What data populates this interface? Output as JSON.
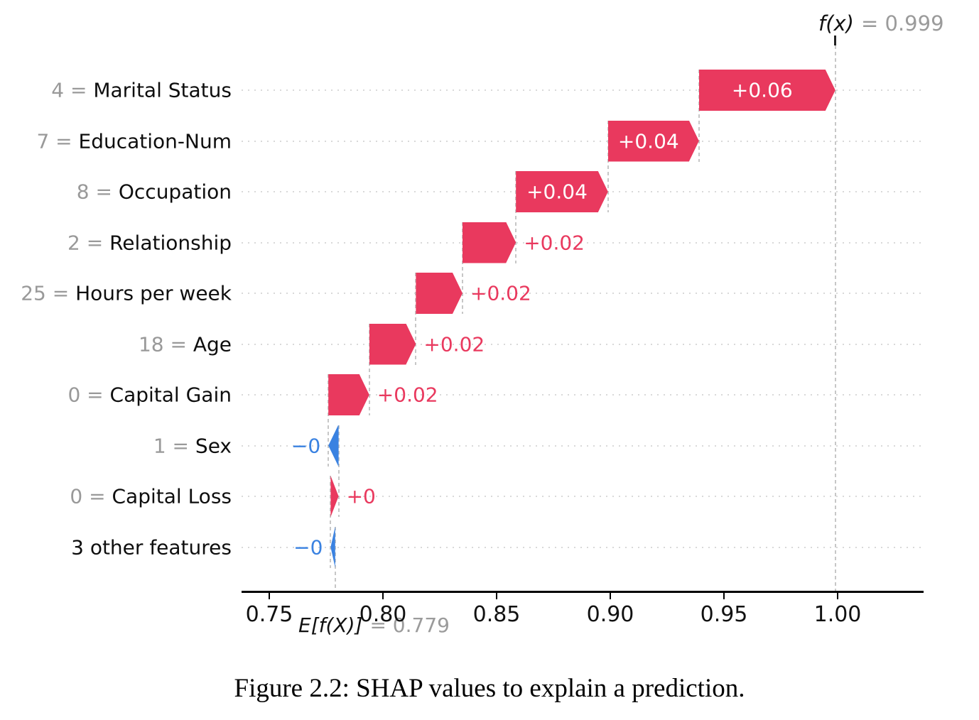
{
  "chart_data": {
    "type": "bar",
    "subtype": "shap-waterfall",
    "fx": {
      "label": "f(x)",
      "value": 0.999,
      "value_text": "= 0.999"
    },
    "base": {
      "label": "E[f(X)]",
      "value": 0.779,
      "value_text": "= 0.779"
    },
    "equals": "=",
    "x_ticks": [
      0.75,
      0.8,
      0.85,
      0.9,
      0.95,
      1.0
    ],
    "x_tick_labels": [
      "0.75",
      "0.80",
      "0.85",
      "0.90",
      "0.95",
      "1.00"
    ],
    "xlim": [
      0.738,
      1.038
    ],
    "grid": "dotted-horizontal",
    "colors": {
      "positive": "#e9395e",
      "negative": "#3a82e1",
      "muted_text": "#9b9b9b",
      "grid": "#d9d9d9",
      "connector": "#c7c7c7",
      "axis": "#000000"
    },
    "rows": [
      {
        "value": "4",
        "feature": "Marital Status",
        "label": "+0.06",
        "shap": 0.06,
        "start": 0.939,
        "end": 0.999,
        "direction": "positive",
        "label_position": "inside"
      },
      {
        "value": "7",
        "feature": "Education-Num",
        "label": "+0.04",
        "shap": 0.04,
        "start": 0.899,
        "end": 0.939,
        "direction": "positive",
        "label_position": "inside"
      },
      {
        "value": "8",
        "feature": "Occupation",
        "label": "+0.04",
        "shap": 0.0405,
        "start": 0.8585,
        "end": 0.899,
        "direction": "positive",
        "label_position": "inside"
      },
      {
        "value": "2",
        "feature": "Relationship",
        "label": "+0.02",
        "shap": 0.0235,
        "start": 0.835,
        "end": 0.8585,
        "direction": "positive",
        "label_position": "right"
      },
      {
        "value": "25",
        "feature": "Hours per week",
        "label": "+0.02",
        "shap": 0.0205,
        "start": 0.8145,
        "end": 0.835,
        "direction": "positive",
        "label_position": "right"
      },
      {
        "value": "18",
        "feature": "Age",
        "label": "+0.02",
        "shap": 0.0205,
        "start": 0.794,
        "end": 0.8145,
        "direction": "positive",
        "label_position": "right"
      },
      {
        "value": "0",
        "feature": "Capital Gain",
        "label": "+0.02",
        "shap": 0.018,
        "start": 0.776,
        "end": 0.794,
        "direction": "positive",
        "label_position": "right"
      },
      {
        "value": "1",
        "feature": "Sex",
        "label": "−0",
        "shap": -0.0045,
        "start": 0.7805,
        "end": 0.776,
        "direction": "negative",
        "label_position": "left"
      },
      {
        "value": "0",
        "feature": "Capital Loss",
        "label": "+0",
        "shap": 0.0035,
        "start": 0.777,
        "end": 0.7805,
        "direction": "positive",
        "label_position": "right"
      },
      {
        "value": null,
        "feature": "3 other features",
        "label": "−0",
        "shap": -0.002,
        "start": 0.779,
        "end": 0.777,
        "direction": "negative",
        "label_position": "left"
      }
    ],
    "caption": "Figure 2.2: SHAP values to explain a prediction."
  }
}
